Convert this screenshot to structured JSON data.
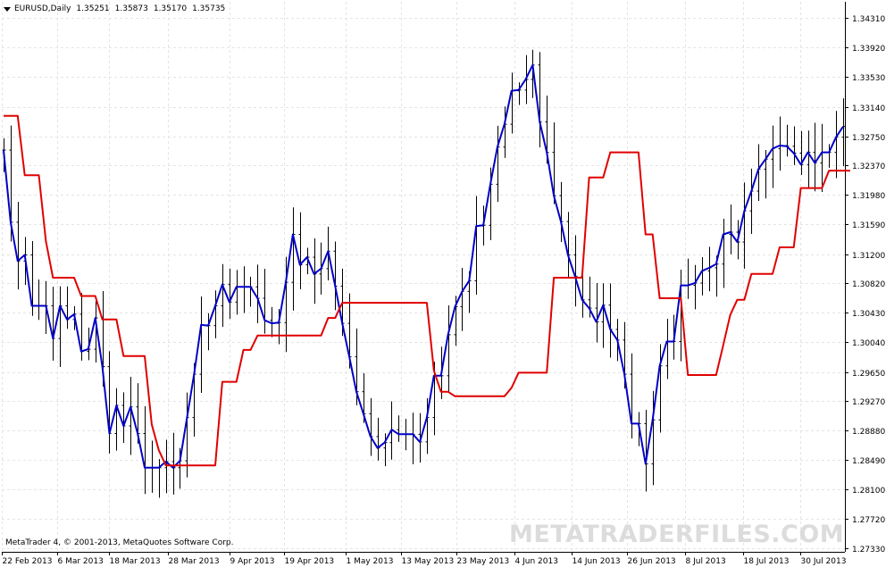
{
  "header": {
    "symbol": "EURUSD,Daily",
    "open": "1.35251",
    "high": "1.35873",
    "low": "1.35170",
    "close": "1.35735"
  },
  "footer": {
    "copyright": "MetaTrader 4, © 2001-2013, MetaQuotes Software Corp.",
    "watermark": "METATRADERFILES.COM"
  },
  "colors": {
    "background": "#ffffff",
    "grid": "#e4e4e4",
    "bars": "#000000",
    "fast_line": "#0000c8",
    "slow_line": "#e00000"
  },
  "chart_data": {
    "type": "line",
    "y_ticks": [
      "1.34310",
      "1.33920",
      "1.33530",
      "1.33140",
      "1.32750",
      "1.32370",
      "1.31980",
      "1.31590",
      "1.31200",
      "1.30820",
      "1.30430",
      "1.30040",
      "1.29650",
      "1.29270",
      "1.28880",
      "1.28490",
      "1.28100",
      "1.27720",
      "1.27330"
    ],
    "x_ticks": [
      "22 Feb 2013",
      "6 Mar 2013",
      "18 Mar 2013",
      "28 Mar 2013",
      "9 Apr 2013",
      "19 Apr 2013",
      "1 May 2013",
      "13 May 2013",
      "23 May 2013",
      "4 Jun 2013",
      "14 Jun 2013",
      "26 Jun 2013",
      "8 Jul 2013",
      "18 Jul 2013",
      "30 Jul 2013"
    ],
    "ylim": [
      1.2725,
      1.3445
    ],
    "grid": true,
    "bars_close": [
      1.3257,
      1.3162,
      1.3111,
      1.3119,
      1.3052,
      1.3052,
      1.3052,
      1.3009,
      1.3052,
      1.3034,
      1.3041,
      1.2992,
      1.2995,
      1.3036,
      1.2972,
      1.2884,
      1.2921,
      1.2894,
      1.2919,
      1.2884,
      1.2839,
      1.2839,
      1.2839,
      1.2847,
      1.2839,
      1.2848,
      1.2905,
      1.2962,
      1.3027,
      1.3026,
      1.3052,
      1.308,
      1.3057,
      1.3077,
      1.3077,
      1.3077,
      1.3062,
      1.3033,
      1.3029,
      1.303,
      1.3083,
      1.3146,
      1.3106,
      1.3116,
      1.3094,
      1.3101,
      1.3124,
      1.3078,
      1.3029,
      1.2985,
      1.2939,
      1.291,
      1.288,
      1.2865,
      1.2872,
      1.2889,
      1.2883,
      1.2883,
      1.2883,
      1.2873,
      1.2905,
      1.296,
      1.296,
      1.3014,
      1.3051,
      1.3071,
      1.3085,
      1.3157,
      1.3158,
      1.3212,
      1.3261,
      1.3291,
      1.3335,
      1.3336,
      1.335,
      1.3369,
      1.3294,
      1.3254,
      1.3197,
      1.3163,
      1.3119,
      1.3091,
      1.306,
      1.3049,
      1.3031,
      1.3053,
      1.3021,
      1.3007,
      1.2962,
      1.2897,
      1.2897,
      1.2844,
      1.2902,
      1.2973,
      1.3005,
      1.3005,
      1.3079,
      1.3079,
      1.3082,
      1.3098,
      1.3102,
      1.3107,
      1.3146,
      1.3149,
      1.3136,
      1.3177,
      1.3203,
      1.3232,
      1.3245,
      1.3259,
      1.3263,
      1.3262,
      1.3253,
      1.3238,
      1.3254,
      1.324,
      1.3254,
      1.3254,
      1.3274,
      1.3288
    ],
    "series": [
      {
        "values": [
          1.3257,
          1.3162,
          1.3111,
          1.3119,
          1.3052,
          1.3052,
          1.3052,
          1.3009,
          1.3052,
          1.3034,
          1.3041,
          1.2992,
          1.2995,
          1.3036,
          1.2972,
          1.2884,
          1.2921,
          1.2894,
          1.2919,
          1.2884,
          1.2839,
          1.2839,
          1.2839,
          1.2847,
          1.2839,
          1.2848,
          1.2905,
          1.2962,
          1.3027,
          1.3026,
          1.3052,
          1.308,
          1.3057,
          1.3077,
          1.3077,
          1.3077,
          1.3062,
          1.3033,
          1.3029,
          1.303,
          1.3083,
          1.3146,
          1.3106,
          1.3116,
          1.3094,
          1.3101,
          1.3124,
          1.3078,
          1.3029,
          1.2985,
          1.2939,
          1.291,
          1.288,
          1.2865,
          1.2872,
          1.2889,
          1.2883,
          1.2883,
          1.2883,
          1.2873,
          1.2905,
          1.296,
          1.296,
          1.3014,
          1.3051,
          1.3071,
          1.3085,
          1.3157,
          1.3158,
          1.3212,
          1.3261,
          1.3291,
          1.3335,
          1.3336,
          1.335,
          1.3369,
          1.3294,
          1.3254,
          1.3197,
          1.3163,
          1.3119,
          1.3091,
          1.306,
          1.3049,
          1.3031,
          1.3053,
          1.3021,
          1.3007,
          1.2962,
          1.2897,
          1.2897,
          1.2844,
          1.2902,
          1.2973,
          1.3005,
          1.3005,
          1.3079,
          1.3079,
          1.3082,
          1.3098,
          1.3102,
          1.3107,
          1.3146,
          1.3149,
          1.3136,
          1.3177,
          1.3203,
          1.3232,
          1.3245,
          1.3259,
          1.3263,
          1.3262,
          1.3253,
          1.3238,
          1.3254,
          1.324,
          1.3254,
          1.3254,
          1.3274,
          1.3288
        ],
        "color": "#0000c8"
      },
      {
        "values": [
          1.3302,
          1.3302,
          1.3302,
          1.3224,
          1.3224,
          1.3224,
          1.3137,
          1.3089,
          1.3089,
          1.3089,
          1.3089,
          1.3065,
          1.3065,
          1.3065,
          1.3034,
          1.3034,
          1.3034,
          1.2986,
          1.2986,
          1.2986,
          1.2986,
          1.2896,
          1.2862,
          1.2842,
          1.2842,
          1.2842,
          1.2842,
          1.2842,
          1.2842,
          1.2842,
          1.2842,
          1.2952,
          1.2952,
          1.2952,
          1.2994,
          1.2994,
          1.3013,
          1.3013,
          1.3013,
          1.3013,
          1.3013,
          1.3013,
          1.3013,
          1.3013,
          1.3013,
          1.3013,
          1.3036,
          1.3036,
          1.3056,
          1.3056,
          1.3056,
          1.3056,
          1.3056,
          1.3056,
          1.3056,
          1.3056,
          1.3056,
          1.3056,
          1.3056,
          1.3056,
          1.3056,
          1.2967,
          1.2939,
          1.2939,
          1.2933,
          1.2933,
          1.2933,
          1.2933,
          1.2933,
          1.2933,
          1.2933,
          1.2933,
          1.2944,
          1.2964,
          1.2964,
          1.2964,
          1.2964,
          1.2964,
          1.3089,
          1.3089,
          1.3089,
          1.3089,
          1.3089,
          1.3221,
          1.3221,
          1.3221,
          1.3254,
          1.3254,
          1.3254,
          1.3254,
          1.3254,
          1.3146,
          1.3146,
          1.3062,
          1.3062,
          1.3062,
          1.3062,
          1.2961,
          1.2961,
          1.2961,
          1.2961,
          1.2961,
          1.3,
          1.304,
          1.306,
          1.306,
          1.3094,
          1.3094,
          1.3094,
          1.3094,
          1.3129,
          1.3129,
          1.3129,
          1.3207,
          1.3207,
          1.3207,
          1.3207,
          1.323,
          1.323,
          1.323,
          1.323
        ],
        "color": "#e00000"
      }
    ]
  }
}
